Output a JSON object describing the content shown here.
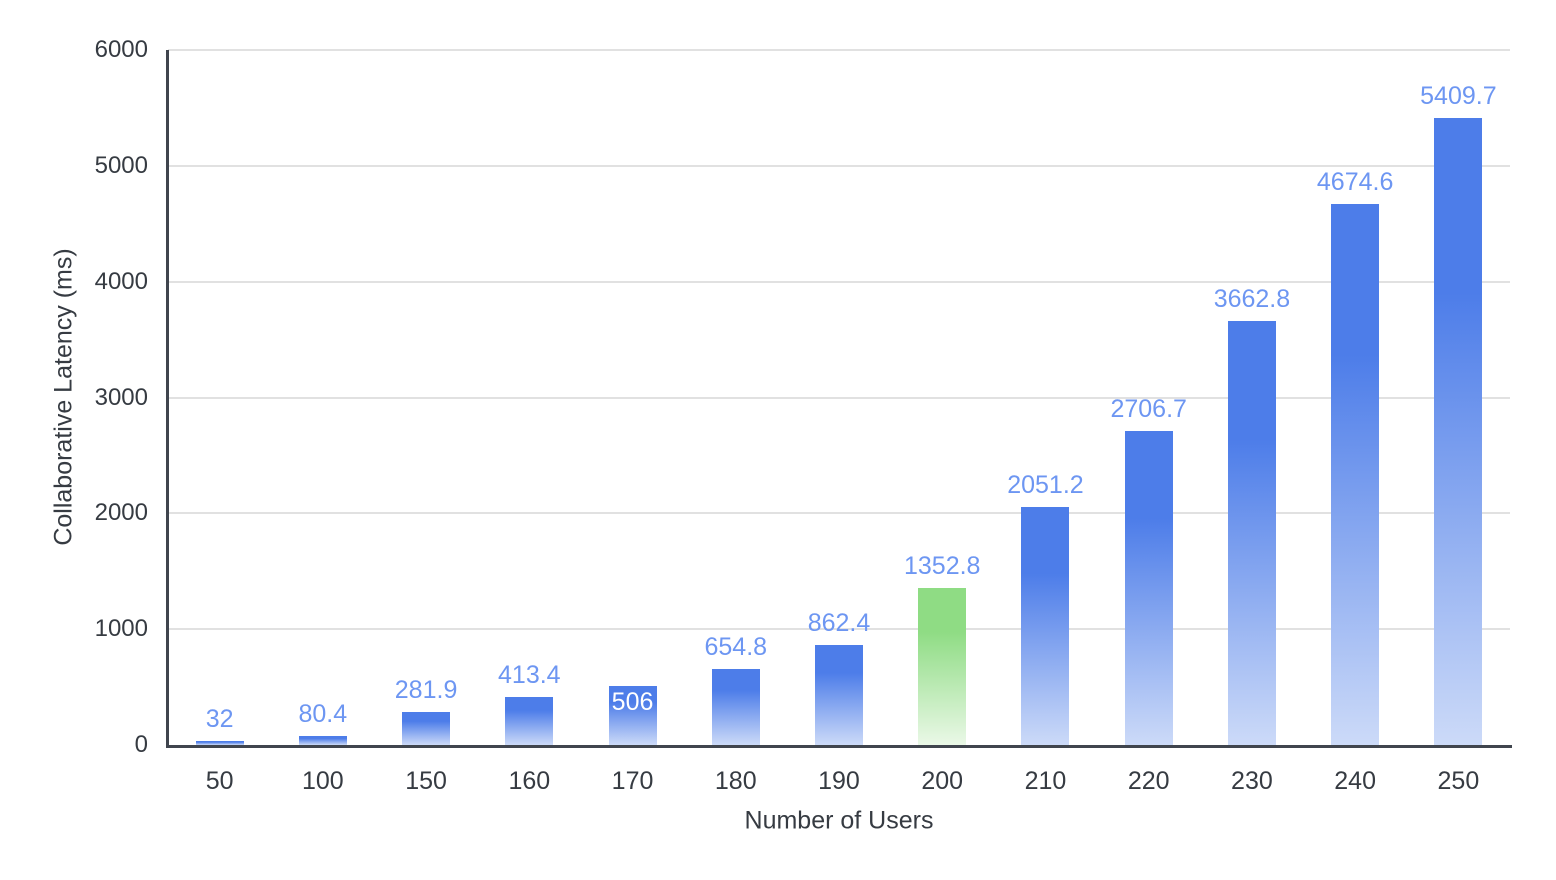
{
  "chart_data": {
    "type": "bar",
    "title": "",
    "xlabel": "Number of Users",
    "ylabel": "Collaborative Latency (ms)",
    "categories": [
      "50",
      "100",
      "150",
      "160",
      "170",
      "180",
      "190",
      "200",
      "210",
      "220",
      "230",
      "240",
      "250"
    ],
    "values": [
      32,
      80.4,
      281.9,
      413.4,
      506,
      654.8,
      862.4,
      1352.8,
      2051.2,
      2706.7,
      3662.8,
      4674.6,
      5409.7
    ],
    "value_labels": [
      "32",
      "80.4",
      "281.9",
      "413.4",
      "506",
      "654.8",
      "862.4",
      "1352.8",
      "2051.2",
      "2706.7",
      "3662.8",
      "4674.6",
      "5409.7"
    ],
    "ylim": [
      0,
      6000
    ],
    "yticks": [
      0,
      1000,
      2000,
      3000,
      4000,
      5000,
      6000
    ],
    "grid": true,
    "legend": "none",
    "highlight_index": 7,
    "inside_label_index": 4,
    "colors": {
      "bar_top": "#4d7de9",
      "bar_bottom": "#ccdaf8",
      "highlight_top": "#8fdc84",
      "highlight_bottom": "#eaf8e7",
      "value_label": "#6d96f2",
      "inside_label": "#ffffff",
      "axis_line": "#40454e",
      "axis_text": "#363b42",
      "grid_line": "#e1e1e1",
      "background": "#ffffff"
    }
  }
}
